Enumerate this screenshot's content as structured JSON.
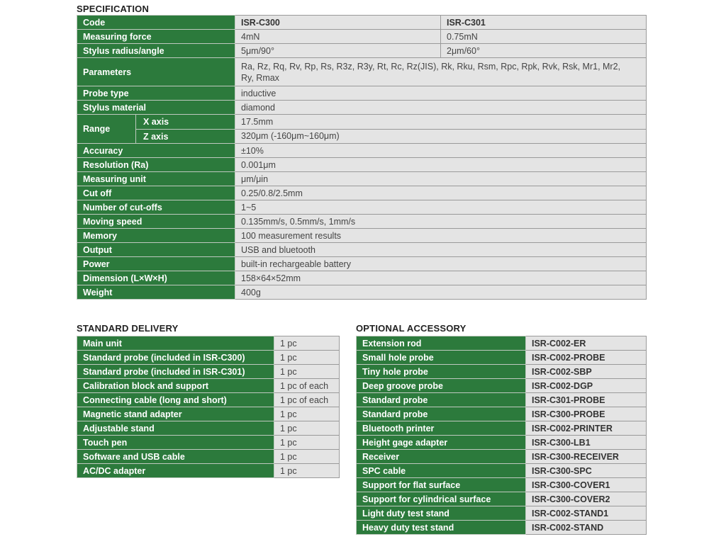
{
  "spec": {
    "title": "SPECIFICATION",
    "code_label": "Code",
    "models": [
      "ISR-C300",
      "ISR-C301"
    ],
    "rows": [
      {
        "key": "force",
        "label": "Measuring force",
        "c300": "4mN",
        "c301": "0.75mN"
      },
      {
        "key": "stylus",
        "label": "Stylus radius/angle",
        "c300": "5μm/90°",
        "c301": "2μm/60°"
      },
      {
        "key": "params",
        "label": "Parameters",
        "value": "Ra, Rz, Rq, Rv, Rp, Rs, R3z, R3y, Rt, Rc, Rz(JIS), Rk, Rku, Rsm, Rpc, Rpk, Rvk, Rsk, Mr1, Mr2, Ry, Rmax"
      },
      {
        "key": "probe",
        "label": "Probe type",
        "value": "inductive"
      },
      {
        "key": "material",
        "label": "Stylus material",
        "value": "diamond"
      }
    ],
    "range": {
      "label": "Range",
      "x_label": "X axis",
      "x_value": "17.5mm",
      "z_label": "Z axis",
      "z_value": "320μm (-160μm~160μm)"
    },
    "rows2": [
      {
        "label": "Accuracy",
        "value": "±10%"
      },
      {
        "label": "Resolution (Ra)",
        "value": "0.001μm"
      },
      {
        "label": "Measuring unit",
        "value": "μm/μin"
      },
      {
        "label": "Cut off",
        "value": "0.25/0.8/2.5mm"
      },
      {
        "label": "Number of cut-offs",
        "value": "1~5"
      },
      {
        "label": "Moving speed",
        "value": "0.135mm/s, 0.5mm/s, 1mm/s"
      },
      {
        "label": "Memory",
        "value": "100 measurement results"
      },
      {
        "label": "Output",
        "value": "USB and bluetooth"
      },
      {
        "label": "Power",
        "value": "built-in rechargeable battery"
      },
      {
        "label": "Dimension (L×W×H)",
        "value": "158×64×52mm"
      },
      {
        "label": "Weight",
        "value": "400g"
      }
    ]
  },
  "delivery": {
    "title": "STANDARD DELIVERY",
    "items": [
      {
        "label": "Main unit",
        "qty": "1 pc"
      },
      {
        "label": "Standard probe (included in ISR-C300)",
        "qty": "1 pc"
      },
      {
        "label": "Standard probe (included in ISR-C301)",
        "qty": "1 pc"
      },
      {
        "label": "Calibration block and support",
        "qty": "1 pc of each"
      },
      {
        "label": "Connecting cable (long and short)",
        "qty": "1 pc of each"
      },
      {
        "label": "Magnetic stand adapter",
        "qty": "1 pc"
      },
      {
        "label": "Adjustable stand",
        "qty": "1 pc"
      },
      {
        "label": "Touch pen",
        "qty": "1 pc"
      },
      {
        "label": "Software and USB cable",
        "qty": "1 pc"
      },
      {
        "label": "AC/DC adapter",
        "qty": "1 pc"
      }
    ]
  },
  "accessory": {
    "title": "OPTIONAL ACCESSORY",
    "items": [
      {
        "label": "Extension rod",
        "code": "ISR-C002-ER"
      },
      {
        "label": "Small hole probe",
        "code": "ISR-C002-PROBE"
      },
      {
        "label": "Tiny hole probe",
        "code": "ISR-C002-SBP"
      },
      {
        "label": "Deep groove probe",
        "code": "ISR-C002-DGP"
      },
      {
        "label": "Standard probe",
        "code": "ISR-C301-PROBE"
      },
      {
        "label": "Standard probe",
        "code": "ISR-C300-PROBE"
      },
      {
        "label": "Bluetooth printer",
        "code": "ISR-C002-PRINTER"
      },
      {
        "label": "Height gage adapter",
        "code": "ISR-C300-LB1"
      },
      {
        "label": "Receiver",
        "code": "ISR-C300-RECEIVER"
      },
      {
        "label": "SPC cable",
        "code": "ISR-C300-SPC"
      },
      {
        "label": "Support for flat surface",
        "code": "ISR-C300-COVER1"
      },
      {
        "label": "Support for cylindrical surface",
        "code": "ISR-C300-COVER2"
      },
      {
        "label": "Light duty test stand",
        "code": "ISR-C002-STAND1"
      },
      {
        "label": "Heavy duty test stand",
        "code": "ISR-C002-STAND"
      }
    ]
  },
  "colors": {
    "label_bg": "#2c7a3c",
    "value_bg": "#e4e4e4"
  }
}
